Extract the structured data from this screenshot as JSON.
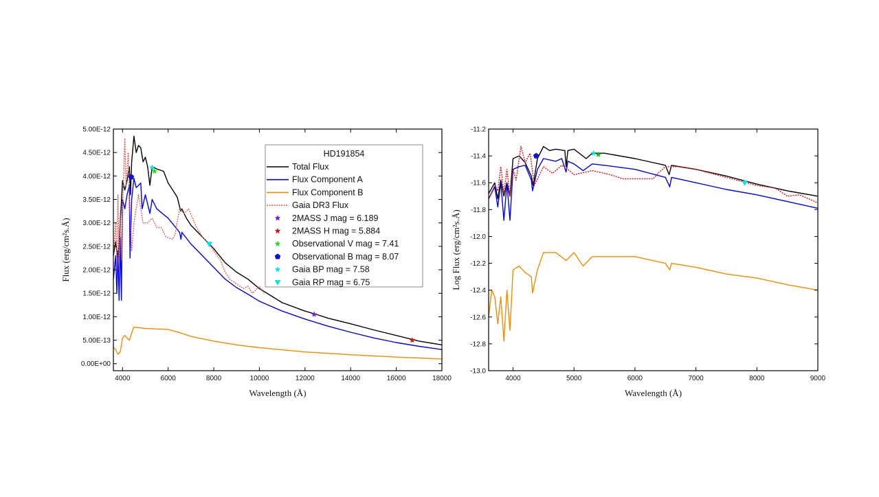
{
  "chart_data": [
    {
      "type": "line",
      "xlabel": "Wavelength (Å)",
      "ylabel": "Flux (erg/cm²s.Å)",
      "xlim": [
        3600,
        18000
      ],
      "ylim": [
        -1.5e-13,
        5e-12
      ],
      "xticks": [
        4000,
        6000,
        8000,
        10000,
        12000,
        14000,
        16000,
        18000
      ],
      "yticks": [
        "0.00E+00",
        "5.00E-13",
        "1.00E-12",
        "1.50E-12",
        "2.00E-12",
        "2.50E-12",
        "3.00E-12",
        "3.50E-12",
        "4.00E-12",
        "4.50E-12",
        "5.00E-12"
      ],
      "ytick_values": [
        0,
        5e-13,
        1e-12,
        1.5e-12,
        2e-12,
        2.5e-12,
        3e-12,
        3.5e-12,
        4e-12,
        4.5e-12,
        5e-12
      ],
      "grid": false,
      "legend": {
        "title": "HD191854",
        "placement": "top-right"
      },
      "series": [
        {
          "name": "Total Flux",
          "color": "#000000",
          "style": "solid",
          "x": [
            3600,
            3700,
            3800,
            3900,
            4000,
            4100,
            4200,
            4300,
            4350,
            4400,
            4500,
            4600,
            4700,
            4800,
            4900,
            5000,
            5100,
            5200,
            5300,
            5500,
            5800,
            6000,
            6200,
            6400,
            6550,
            6600,
            6800,
            7000,
            7500,
            8000,
            8500,
            9000,
            9500,
            10000,
            10500,
            11000,
            12000,
            12500,
            13000,
            14000,
            15000,
            16000,
            17000,
            18000
          ],
          "y": [
            2.3e-12,
            2.6e-12,
            2.2e-12,
            3e-12,
            3.9e-12,
            3.7e-12,
            3.9e-12,
            4.2e-12,
            3.6e-12,
            4.3e-12,
            4.85e-12,
            4.5e-12,
            4.65e-12,
            4.6e-12,
            4.3e-12,
            4.4e-12,
            4.2e-12,
            3.8e-12,
            4.2e-12,
            4.15e-12,
            4.1e-12,
            3.85e-12,
            3.7e-12,
            3.55e-12,
            3.25e-12,
            3.3e-12,
            3.1e-12,
            2.95e-12,
            2.7e-12,
            2.45e-12,
            2.15e-12,
            1.95e-12,
            1.8e-12,
            1.6e-12,
            1.45e-12,
            1.3e-12,
            1.12e-12,
            1.05e-12,
            9.7e-13,
            8.5e-13,
            7.2e-13,
            6e-13,
            4.8e-13,
            4e-13
          ]
        },
        {
          "name": "Flux Component A",
          "color": "#0000ee",
          "style": "solid",
          "x": [
            3600,
            3700,
            3750,
            3800,
            3850,
            3900,
            3950,
            4000,
            4100,
            4200,
            4300,
            4330,
            4400,
            4500,
            4600,
            4700,
            4800,
            4860,
            5000,
            5200,
            5300,
            5500,
            6000,
            6500,
            6560,
            6600,
            7000,
            7500,
            8000,
            8500,
            9000,
            9500,
            10000,
            11000,
            12000,
            13000,
            14000,
            15000,
            16000,
            17000,
            18000
          ],
          "y": [
            1.8e-12,
            2.3e-12,
            1.5e-12,
            2.4e-12,
            1.35e-12,
            2.7e-12,
            1.35e-12,
            3.5e-12,
            3.3e-12,
            3.6e-12,
            3.8e-12,
            2.25e-12,
            3.5e-12,
            3.95e-12,
            3.75e-12,
            3.8e-12,
            3.85e-12,
            3.3e-12,
            3.6e-12,
            3.2e-12,
            3.5e-12,
            3.3e-12,
            3.1e-12,
            2.8e-12,
            2.65e-12,
            2.8e-12,
            2.55e-12,
            2.3e-12,
            2.05e-12,
            1.8e-12,
            1.62e-12,
            1.48e-12,
            1.33e-12,
            1.12e-12,
            9.5e-13,
            8e-13,
            6.7e-13,
            5.5e-13,
            4.5e-13,
            3.7e-13,
            3e-13
          ]
        },
        {
          "name": "Flux Component B",
          "color": "#f08c00",
          "style": "solid",
          "x": [
            3600,
            3700,
            3800,
            3900,
            4000,
            4100,
            4300,
            4400,
            4500,
            5000,
            5500,
            6000,
            6500,
            7000,
            8000,
            9000,
            10000,
            12000,
            14000,
            16000,
            18000
          ],
          "y": [
            3.5e-13,
            3e-13,
            2e-13,
            2.5e-13,
            5.5e-13,
            6e-13,
            5e-13,
            6.5e-13,
            7.8e-13,
            7.5e-13,
            7.4e-13,
            7.3e-13,
            6.6e-13,
            5.8e-13,
            4.8e-13,
            4e-13,
            3.4e-13,
            2.5e-13,
            1.9e-13,
            1.4e-13,
            1e-13
          ]
        },
        {
          "name": "Gaia DR3 Flux",
          "color": "#e06060",
          "style": "dotted",
          "x": [
            3600,
            3700,
            3750,
            3800,
            3850,
            3900,
            3950,
            4000,
            4100,
            4150,
            4250,
            4300,
            4400,
            4500,
            4700,
            4900,
            5100,
            5300,
            5500,
            5700,
            5900,
            6200,
            6300,
            6500,
            6700,
            6900,
            7200,
            7500,
            7800,
            8000,
            8300,
            8500,
            8700,
            9000,
            9300,
            9500,
            9700,
            10000,
            10200
          ],
          "y": [
            2.3e-12,
            3e-12,
            2e-12,
            3.6e-12,
            2.2e-12,
            3.2e-12,
            2.2e-12,
            3.3e-12,
            4.8e-12,
            3.8e-12,
            4.5e-12,
            3.5e-12,
            2.4e-12,
            3e-12,
            3.6e-12,
            3e-12,
            3e-12,
            3.1e-12,
            2.9e-12,
            2.9e-12,
            2.7e-12,
            2.65e-12,
            2.75e-12,
            3.3e-12,
            3.2e-12,
            3.3e-12,
            2.95e-12,
            2.7e-12,
            2.55e-12,
            2.4e-12,
            2.2e-12,
            1.95e-12,
            1.8e-12,
            1.7e-12,
            1.6e-12,
            1.65e-12,
            1.5e-12,
            1.65e-12,
            1.5e-12
          ]
        }
      ],
      "markers": [
        {
          "name": "2MASS J mag = 6.189",
          "color": "#7a1fd6",
          "symbol": "star",
          "x": 12400,
          "y": 1.05e-12
        },
        {
          "name": "2MASS H mag = 5.884",
          "color": "#e01010",
          "symbol": "star",
          "x": 16700,
          "y": 5e-13
        },
        {
          "name": "Observational V mag = 7.41",
          "color": "#22dd22",
          "symbol": "star",
          "x": 5400,
          "y": 4.1e-12
        },
        {
          "name": "Observational B mag = 8.07",
          "color": "#1010d0",
          "symbol": "pentagon",
          "x": 4380,
          "y": 3.98e-12
        },
        {
          "name": "Gaia BP mag = 7.58",
          "color": "#00e5e5",
          "symbol": "star",
          "x": 5300,
          "y": 4.18e-12
        },
        {
          "name": "Gaia RP mag = 6.75",
          "color": "#00e5e5",
          "symbol": "triangle-down",
          "x": 7800,
          "y": 2.55e-12
        }
      ]
    },
    {
      "type": "line",
      "xlabel": "Wavelength (Å)",
      "ylabel": "Log Flux (erg/cm²s.Å)",
      "xlim": [
        3600,
        9000
      ],
      "ylim": [
        -13.0,
        -11.2
      ],
      "xticks": [
        4000,
        5000,
        6000,
        7000,
        8000,
        9000
      ],
      "yticks": [
        "-13.0",
        "-12.8",
        "-12.6",
        "-12.4",
        "-12.2",
        "-12.0",
        "-11.8",
        "-11.6",
        "-11.4",
        "-11.2"
      ],
      "ytick_values": [
        -13.0,
        -12.8,
        -12.6,
        -12.4,
        -12.2,
        -12.0,
        -11.8,
        -11.6,
        -11.4,
        -11.2
      ],
      "grid": false,
      "series": [
        {
          "color": "#000000",
          "style": "solid",
          "x": [
            3600,
            3700,
            3750,
            3800,
            3850,
            3900,
            3950,
            4000,
            4100,
            4200,
            4300,
            4330,
            4400,
            4500,
            4600,
            4700,
            4850,
            4870,
            4900,
            5000,
            5200,
            5300,
            5500,
            6000,
            6500,
            6560,
            6600,
            7000,
            7500,
            8000,
            8500,
            9000
          ],
          "y": [
            -11.68,
            -11.6,
            -11.72,
            -11.58,
            -11.7,
            -11.6,
            -11.7,
            -11.42,
            -11.4,
            -11.45,
            -11.55,
            -11.62,
            -11.42,
            -11.33,
            -11.36,
            -11.35,
            -11.36,
            -11.48,
            -11.36,
            -11.35,
            -11.42,
            -11.38,
            -11.38,
            -11.42,
            -11.47,
            -11.54,
            -11.47,
            -11.5,
            -11.55,
            -11.61,
            -11.66,
            -11.7
          ]
        },
        {
          "color": "#0000ee",
          "style": "solid",
          "x": [
            3600,
            3700,
            3750,
            3800,
            3850,
            3900,
            3950,
            4000,
            4100,
            4200,
            4300,
            4320,
            4400,
            4500,
            4700,
            4800,
            4870,
            4900,
            5000,
            5150,
            5300,
            5500,
            6000,
            6500,
            6570,
            6600,
            7000,
            7500,
            8000,
            8500,
            9000
          ],
          "y": [
            -11.72,
            -11.63,
            -11.78,
            -11.6,
            -11.88,
            -11.6,
            -11.88,
            -11.5,
            -11.48,
            -11.47,
            -11.58,
            -11.66,
            -11.5,
            -11.42,
            -11.44,
            -11.42,
            -11.52,
            -11.44,
            -11.46,
            -11.51,
            -11.46,
            -11.47,
            -11.5,
            -11.56,
            -11.63,
            -11.56,
            -11.6,
            -11.65,
            -11.69,
            -11.74,
            -11.79
          ]
        },
        {
          "color": "#f08c00",
          "style": "solid",
          "x": [
            3600,
            3650,
            3700,
            3750,
            3800,
            3850,
            3900,
            3950,
            4000,
            4100,
            4200,
            4300,
            4320,
            4400,
            4500,
            4700,
            4870,
            5000,
            5150,
            5300,
            5500,
            6000,
            6500,
            6570,
            6600,
            7000,
            7500,
            8000,
            8500,
            9000
          ],
          "y": [
            -12.6,
            -12.4,
            -12.45,
            -12.65,
            -12.45,
            -12.78,
            -12.4,
            -12.7,
            -12.25,
            -12.22,
            -12.27,
            -12.3,
            -12.42,
            -12.25,
            -12.12,
            -12.12,
            -12.18,
            -12.12,
            -12.22,
            -12.15,
            -12.15,
            -12.15,
            -12.2,
            -12.25,
            -12.2,
            -12.23,
            -12.28,
            -12.31,
            -12.36,
            -12.4
          ]
        },
        {
          "color": "#e01010",
          "style": "dotted",
          "x": [
            3600,
            3700,
            3750,
            3800,
            3850,
            3900,
            3950,
            4000,
            4050,
            4130,
            4200,
            4280,
            4350,
            4500,
            4650,
            4800,
            4900,
            5000,
            5300,
            5600,
            5800,
            6000,
            6300,
            6400,
            6500,
            6700,
            7000,
            7500,
            8000,
            8300,
            8500,
            8700,
            9000
          ],
          "y": [
            -11.72,
            -11.62,
            -11.66,
            -11.48,
            -11.68,
            -11.5,
            -11.7,
            -11.5,
            -11.58,
            -11.33,
            -11.45,
            -11.38,
            -11.62,
            -11.48,
            -11.53,
            -11.47,
            -11.5,
            -11.54,
            -11.51,
            -11.54,
            -11.57,
            -11.57,
            -11.57,
            -11.52,
            -11.48,
            -11.48,
            -11.5,
            -11.56,
            -11.62,
            -11.64,
            -11.7,
            -11.69,
            -11.75
          ]
        }
      ],
      "markers": [
        {
          "color": "#1010d0",
          "symbol": "pentagon",
          "x": 4380,
          "y": -11.4
        },
        {
          "color": "#00e5e5",
          "symbol": "star",
          "x": 5320,
          "y": -11.38
        },
        {
          "color": "#22aa22",
          "symbol": "star",
          "x": 5400,
          "y": -11.39
        },
        {
          "color": "#00e5e5",
          "symbol": "triangle-down",
          "x": 7800,
          "y": -11.6
        }
      ]
    }
  ]
}
